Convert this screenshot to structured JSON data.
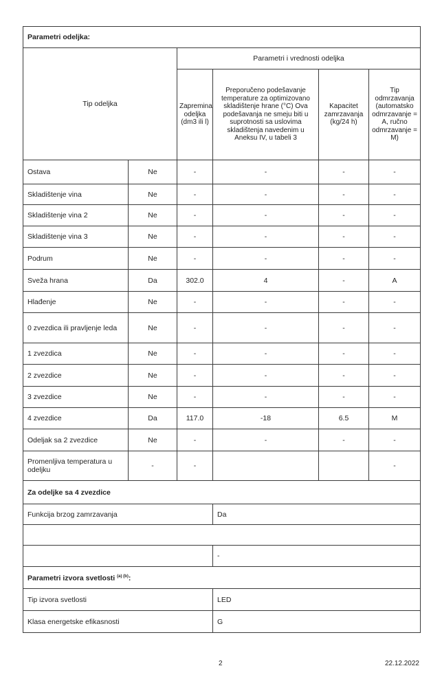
{
  "section_title": "Parametri odeljka:",
  "header": {
    "tip_odeljka": "Tip odeljka",
    "group": "Parametri i vrednosti odeljka",
    "columns": [
      "Zapremina odeljka (dm3 ili l)",
      "Preporučeno podešavanje temperature za optimizovano skladištenje hrane (°C) Ova podešavanja ne smeju biti u suprotnosti sa uslovima skladištenja navedenim u Aneksu IV, u tabeli 3",
      "Kapacitet zamrzavanja (kg/24 h)",
      "Tip odmrzavanja (automatsko odmrzavanje = A, ručno odmrzavanje = M)"
    ]
  },
  "rows": [
    {
      "name": "Ostava",
      "present": "Ne",
      "volume": "-",
      "temp": "-",
      "capacity": "-",
      "defrost": "-"
    },
    {
      "name": "Skladištenje vina",
      "present": "Ne",
      "volume": "-",
      "temp": "-",
      "capacity": "-",
      "defrost": "-"
    },
    {
      "name": "Skladištenje vina 2",
      "present": "Ne",
      "volume": "-",
      "temp": "-",
      "capacity": "-",
      "defrost": "-"
    },
    {
      "name": "Skladištenje vina 3",
      "present": "Ne",
      "volume": "-",
      "temp": "-",
      "capacity": "-",
      "defrost": "-"
    },
    {
      "name": "Podrum",
      "present": "Ne",
      "volume": "-",
      "temp": "-",
      "capacity": "-",
      "defrost": "-"
    },
    {
      "name": "Sveža hrana",
      "present": "Da",
      "volume": "302.0",
      "temp": "4",
      "capacity": "-",
      "defrost": "A"
    },
    {
      "name": "Hlađenje",
      "present": "Ne",
      "volume": "-",
      "temp": "-",
      "capacity": "-",
      "defrost": "-"
    },
    {
      "name": "0 zvezdica ili pravljenje leda",
      "present": "Ne",
      "volume": "-",
      "temp": "-",
      "capacity": "-",
      "defrost": "-"
    },
    {
      "name": "1 zvezdica",
      "present": "Ne",
      "volume": "-",
      "temp": "-",
      "capacity": "-",
      "defrost": "-"
    },
    {
      "name": "2 zvezdice",
      "present": "Ne",
      "volume": "-",
      "temp": "-",
      "capacity": "-",
      "defrost": "-"
    },
    {
      "name": "3 zvezdice",
      "present": "Ne",
      "volume": "-",
      "temp": "-",
      "capacity": "-",
      "defrost": "-"
    },
    {
      "name": "4 zvezdice",
      "present": "Da",
      "volume": "117.0",
      "temp": "-18",
      "capacity": "6.5",
      "defrost": "M"
    },
    {
      "name": "Odeljak sa 2 zvezdice",
      "present": "Ne",
      "volume": "-",
      "temp": "-",
      "capacity": "-",
      "defrost": "-"
    },
    {
      "name": "Promenljiva temperatura u odeljku",
      "present": "-",
      "volume": "-",
      "temp": "",
      "capacity": "",
      "defrost": "-"
    }
  ],
  "four_star": {
    "title": "Za odeljke sa 4 zvezdice",
    "fast_freeze_label": "Funkcija brzog zamrzavanja",
    "fast_freeze_value": "Da",
    "blank_value": "-"
  },
  "light": {
    "title": "Parametri izvora svetlosti",
    "title_sup": "(a) (b)",
    "title_suffix": ":",
    "type_label": "Tip izvora svetlosti",
    "type_value": "LED",
    "class_label": "Klasa energetske efikasnosti",
    "class_value": "G"
  },
  "footer": {
    "page": "2",
    "date": "22.12.2022"
  }
}
